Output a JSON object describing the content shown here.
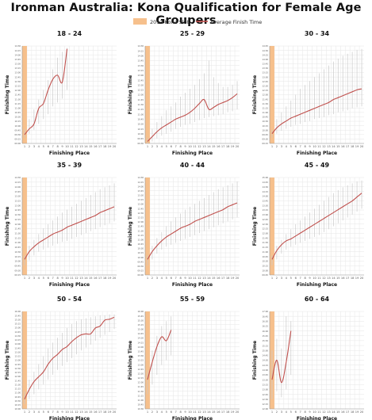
{
  "page": {
    "title": "Ironman Australia: Kona Qualification for Female Age Groupers"
  },
  "legend": {
    "slot_label": "2013 Kona Slot",
    "avg_label": "Average Finish Time"
  },
  "colors": {
    "slot": "#f6c08c",
    "line": "#c0504d",
    "whisker": "#c9c9c9",
    "grid": "#e6e6e6"
  },
  "chart_data": [
    {
      "type": "line",
      "title": "18 - 24",
      "xlabel": "Finishing Place",
      "ylabel": "Finishing Time",
      "x": [
        1,
        2,
        3,
        4,
        5,
        6,
        7,
        8,
        9,
        10
      ],
      "xticks": [
        1,
        2,
        3,
        4,
        5,
        6,
        7,
        8,
        9,
        10,
        11,
        12,
        13,
        14,
        15,
        16,
        17,
        18,
        19,
        20
      ],
      "yticks": [
        "09:00",
        "09:15",
        "09:30",
        "09:45",
        "10:00",
        "10:15",
        "10:30",
        "10:45",
        "11:00",
        "11:15",
        "11:30",
        "11:45",
        "12:00",
        "12:15",
        "12:30",
        "12:45",
        "13:00",
        "13:15",
        "13:30",
        "13:45",
        "14:00",
        "14:15",
        "14:30"
      ],
      "kona_slots": 1,
      "avg": [
        0.09,
        0.15,
        0.2,
        0.36,
        0.41,
        0.55,
        0.66,
        0.7,
        0.63,
        0.97
      ],
      "low": [
        0.06,
        0.1,
        0.14,
        0.2,
        0.25,
        0.3,
        0.38,
        0.42,
        0.46,
        0.55
      ],
      "high": [
        0.15,
        0.25,
        0.35,
        0.45,
        0.55,
        0.65,
        0.76,
        0.88,
        0.94,
        0.98
      ]
    },
    {
      "type": "line",
      "title": "25 - 29",
      "xlabel": "Finishing Place",
      "ylabel": "Finishing Time",
      "x": [
        1,
        2,
        3,
        4,
        5,
        6,
        7,
        8,
        9,
        10,
        11,
        12,
        13,
        14,
        15,
        16,
        17,
        18,
        19,
        20
      ],
      "xticks": [
        1,
        2,
        3,
        4,
        5,
        6,
        7,
        8,
        9,
        10,
        11,
        12,
        13,
        14,
        15,
        16,
        17,
        18,
        19,
        20
      ],
      "yticks": [
        "09:30",
        "09:45",
        "10:00",
        "10:15",
        "10:30",
        "10:45",
        "11:00",
        "11:15",
        "11:30",
        "11:45",
        "12:00",
        "12:15",
        "12:30",
        "12:45",
        "13:00",
        "13:15",
        "13:30",
        "13:45",
        "14:00",
        "14:15",
        "14:30"
      ],
      "kona_slots": 1,
      "avg": [
        0.02,
        0.07,
        0.12,
        0.16,
        0.19,
        0.22,
        0.25,
        0.27,
        0.29,
        0.32,
        0.36,
        0.41,
        0.45,
        0.35,
        0.37,
        0.4,
        0.42,
        0.44,
        0.47,
        0.51
      ],
      "low": [
        0.0,
        0.02,
        0.05,
        0.08,
        0.1,
        0.12,
        0.15,
        0.17,
        0.19,
        0.2,
        0.22,
        0.24,
        0.26,
        0.27,
        0.28,
        0.29,
        0.3,
        0.32,
        0.33,
        0.35
      ],
      "high": [
        0.06,
        0.15,
        0.22,
        0.28,
        0.34,
        0.38,
        0.42,
        0.48,
        0.52,
        0.56,
        0.6,
        0.66,
        0.72,
        0.85,
        0.68,
        0.62,
        0.58,
        0.58,
        0.6,
        0.64
      ]
    },
    {
      "type": "line",
      "title": "30 - 34",
      "xlabel": "Finishing Place",
      "ylabel": "Finishing Time",
      "x": [
        1,
        2,
        3,
        4,
        5,
        6,
        7,
        8,
        9,
        10,
        11,
        12,
        13,
        14,
        15,
        16,
        17,
        18,
        19,
        20
      ],
      "xticks": [
        1,
        2,
        3,
        4,
        5,
        6,
        7,
        8,
        9,
        10,
        11,
        12,
        13,
        14,
        15,
        16,
        17,
        18,
        19,
        20
      ],
      "yticks": [
        "09:15",
        "09:30",
        "09:45",
        "10:00",
        "10:15",
        "10:30",
        "10:45",
        "11:00",
        "11:15",
        "11:30",
        "11:45",
        "12:00",
        "12:15",
        "12:30",
        "12:45",
        "13:00",
        "13:15",
        "13:30",
        "13:45",
        "14:00",
        "14:15",
        "14:30",
        "14:45"
      ],
      "kona_slots": 1,
      "avg": [
        0.1,
        0.16,
        0.2,
        0.23,
        0.26,
        0.28,
        0.3,
        0.32,
        0.34,
        0.36,
        0.38,
        0.4,
        0.42,
        0.45,
        0.47,
        0.49,
        0.51,
        0.53,
        0.55,
        0.56
      ],
      "low": [
        0.06,
        0.1,
        0.13,
        0.15,
        0.17,
        0.19,
        0.2,
        0.22,
        0.23,
        0.25,
        0.26,
        0.27,
        0.29,
        0.3,
        0.32,
        0.33,
        0.34,
        0.36,
        0.37,
        0.38
      ],
      "high": [
        0.14,
        0.25,
        0.32,
        0.38,
        0.44,
        0.5,
        0.56,
        0.6,
        0.64,
        0.68,
        0.72,
        0.76,
        0.8,
        0.84,
        0.87,
        0.9,
        0.92,
        0.94,
        0.96,
        0.97
      ]
    },
    {
      "type": "line",
      "title": "35 - 39",
      "xlabel": "Finishing Place",
      "ylabel": "Finishing Time",
      "x": [
        1,
        2,
        3,
        4,
        5,
        6,
        7,
        8,
        9,
        10,
        11,
        12,
        13,
        14,
        15,
        16,
        17,
        18,
        19,
        20
      ],
      "xticks": [
        1,
        2,
        3,
        4,
        5,
        6,
        7,
        8,
        9,
        10,
        11,
        12,
        13,
        14,
        15,
        16,
        17,
        18,
        19,
        20
      ],
      "yticks": [
        "09:15",
        "09:30",
        "09:45",
        "10:00",
        "10:15",
        "10:30",
        "10:45",
        "11:00",
        "11:15",
        "11:30",
        "11:45",
        "12:00",
        "12:15",
        "12:30",
        "12:45",
        "13:00",
        "13:15",
        "13:30",
        "13:45",
        "14:00",
        "14:15",
        "14:30"
      ],
      "kona_slots": 1,
      "avg": [
        0.16,
        0.24,
        0.29,
        0.33,
        0.36,
        0.39,
        0.42,
        0.44,
        0.46,
        0.49,
        0.51,
        0.53,
        0.55,
        0.57,
        0.59,
        0.61,
        0.64,
        0.66,
        0.68,
        0.7
      ],
      "low": [
        0.1,
        0.15,
        0.2,
        0.24,
        0.26,
        0.28,
        0.3,
        0.32,
        0.34,
        0.35,
        0.37,
        0.39,
        0.41,
        0.43,
        0.45,
        0.47,
        0.49,
        0.51,
        0.53,
        0.55
      ],
      "high": [
        0.2,
        0.3,
        0.36,
        0.42,
        0.48,
        0.52,
        0.56,
        0.6,
        0.64,
        0.67,
        0.7,
        0.73,
        0.76,
        0.79,
        0.82,
        0.85,
        0.88,
        0.9,
        0.92,
        0.94
      ]
    },
    {
      "type": "line",
      "title": "40 - 44",
      "xlabel": "Finishing Place",
      "ylabel": "Finishing Time",
      "x": [
        1,
        2,
        3,
        4,
        5,
        6,
        7,
        8,
        9,
        10,
        11,
        12,
        13,
        14,
        15,
        16,
        17,
        18,
        19,
        20
      ],
      "xticks": [
        1,
        2,
        3,
        4,
        5,
        6,
        7,
        8,
        9,
        10,
        11,
        12,
        13,
        14,
        15,
        16,
        17,
        18,
        19,
        20
      ],
      "yticks": [
        "09:00",
        "09:15",
        "09:30",
        "09:45",
        "10:00",
        "10:15",
        "10:30",
        "10:45",
        "11:00",
        "11:15",
        "11:30",
        "11:45",
        "12:00",
        "12:15",
        "12:30",
        "12:45",
        "13:00",
        "13:15",
        "13:30",
        "13:45",
        "14:00",
        "14:15",
        "14:30"
      ],
      "kona_slots": 1,
      "avg": [
        0.16,
        0.24,
        0.3,
        0.35,
        0.39,
        0.42,
        0.45,
        0.48,
        0.5,
        0.52,
        0.55,
        0.57,
        0.59,
        0.61,
        0.63,
        0.65,
        0.67,
        0.7,
        0.72,
        0.74
      ],
      "low": [
        0.1,
        0.16,
        0.22,
        0.26,
        0.29,
        0.31,
        0.33,
        0.35,
        0.37,
        0.39,
        0.41,
        0.43,
        0.45,
        0.47,
        0.49,
        0.51,
        0.53,
        0.55,
        0.57,
        0.59
      ],
      "high": [
        0.2,
        0.3,
        0.38,
        0.44,
        0.5,
        0.55,
        0.59,
        0.63,
        0.67,
        0.7,
        0.73,
        0.76,
        0.79,
        0.82,
        0.85,
        0.88,
        0.9,
        0.92,
        0.94,
        0.96
      ]
    },
    {
      "type": "line",
      "title": "45 - 49",
      "xlabel": "Finishing Place",
      "ylabel": "Finishing Time",
      "x": [
        1,
        2,
        3,
        4,
        5,
        6,
        7,
        8,
        9,
        10,
        11,
        12,
        13,
        14,
        15,
        16,
        17,
        18,
        19,
        20
      ],
      "xticks": [
        1,
        2,
        3,
        4,
        5,
        6,
        7,
        8,
        9,
        10,
        11,
        12,
        13,
        14,
        15,
        16,
        17,
        18,
        19,
        20
      ],
      "yticks": [
        "09:45",
        "10:00",
        "10:15",
        "10:30",
        "10:45",
        "11:00",
        "11:15",
        "11:30",
        "11:45",
        "12:00",
        "12:15",
        "12:30",
        "12:45",
        "13:00",
        "13:15",
        "13:30",
        "13:45",
        "14:00",
        "14:15",
        "14:30",
        "14:45",
        "15:00"
      ],
      "kona_slots": 1,
      "avg": [
        0.16,
        0.25,
        0.31,
        0.35,
        0.37,
        0.4,
        0.43,
        0.46,
        0.49,
        0.52,
        0.55,
        0.58,
        0.61,
        0.64,
        0.67,
        0.7,
        0.73,
        0.76,
        0.8,
        0.84
      ],
      "low": [
        0.1,
        0.16,
        0.22,
        0.26,
        0.29,
        0.31,
        0.33,
        0.35,
        0.37,
        0.39,
        0.41,
        0.44,
        0.47,
        0.5,
        0.53,
        0.56,
        0.59,
        0.62,
        0.65,
        0.68
      ],
      "high": [
        0.2,
        0.3,
        0.36,
        0.42,
        0.47,
        0.52,
        0.56,
        0.6,
        0.64,
        0.68,
        0.72,
        0.76,
        0.8,
        0.84,
        0.87,
        0.9,
        0.92,
        0.94,
        0.96,
        0.97
      ]
    },
    {
      "type": "line",
      "title": "50 - 54",
      "xlabel": "Finishing Place",
      "ylabel": "Finishing Time",
      "x": [
        1,
        2,
        3,
        4,
        5,
        6,
        7,
        8,
        9,
        10,
        11,
        12,
        13,
        14,
        15,
        16,
        17,
        18,
        19,
        20
      ],
      "xticks": [
        1,
        2,
        3,
        4,
        5,
        6,
        7,
        8,
        9,
        10,
        11,
        12,
        13,
        14,
        15,
        16,
        17,
        18,
        19,
        20
      ],
      "yticks": [
        "10:00",
        "10:15",
        "10:30",
        "10:45",
        "11:00",
        "11:15",
        "11:30",
        "11:45",
        "12:00",
        "12:15",
        "12:30",
        "12:45",
        "13:00",
        "13:15",
        "13:30",
        "13:45",
        "14:00",
        "14:15",
        "14:30",
        "14:45",
        "15:00",
        "15:15",
        "15:30",
        "15:45",
        "16:00"
      ],
      "kona_slots": 1,
      "avg": [
        0.1,
        0.2,
        0.28,
        0.33,
        0.38,
        0.46,
        0.52,
        0.56,
        0.61,
        0.64,
        0.69,
        0.73,
        0.76,
        0.77,
        0.77,
        0.83,
        0.85,
        0.91,
        0.92,
        0.94
      ],
      "low": [
        0.05,
        0.1,
        0.15,
        0.2,
        0.25,
        0.3,
        0.35,
        0.4,
        0.44,
        0.48,
        0.52,
        0.56,
        0.6,
        0.63,
        0.66,
        0.7,
        0.73,
        0.76,
        0.79,
        0.82
      ],
      "high": [
        0.18,
        0.3,
        0.38,
        0.46,
        0.54,
        0.62,
        0.68,
        0.73,
        0.78,
        0.83,
        0.87,
        0.9,
        0.92,
        0.93,
        0.94,
        0.95,
        0.96,
        0.96,
        0.97,
        0.97
      ]
    },
    {
      "type": "line",
      "title": "55 - 59",
      "xlabel": "Finishing Place",
      "ylabel": "Finishing Time",
      "x": [
        1,
        2,
        3,
        4,
        5,
        6
      ],
      "xticks": [
        1,
        2,
        3,
        4,
        5,
        6,
        7,
        8,
        9,
        10,
        11,
        12,
        13,
        14,
        15,
        16,
        17,
        18,
        19,
        20
      ],
      "yticks": [
        "10:30",
        "10:45",
        "11:00",
        "11:15",
        "11:30",
        "11:45",
        "12:00",
        "12:15",
        "12:30",
        "12:45",
        "13:00",
        "13:15",
        "13:30",
        "13:45",
        "14:00",
        "14:15",
        "14:30",
        "14:45",
        "15:00",
        "15:15",
        "15:30",
        "15:45",
        "16:00"
      ],
      "kona_slots": 1,
      "avg": [
        0.3,
        0.48,
        0.64,
        0.74,
        0.7,
        0.81
      ],
      "low": [
        0.15,
        0.25,
        0.35,
        0.45,
        0.5,
        0.55
      ],
      "high": [
        0.4,
        0.6,
        0.75,
        0.85,
        0.9,
        0.95
      ]
    },
    {
      "type": "line",
      "title": "60 - 64",
      "xlabel": "Finishing Place",
      "ylabel": "Finishing Time",
      "x": [
        1,
        2,
        3,
        4,
        5
      ],
      "xticks": [
        1,
        2,
        3,
        4,
        5,
        6,
        7,
        8,
        9,
        10,
        11,
        12,
        13,
        14,
        15,
        16,
        17,
        18,
        19,
        20
      ],
      "yticks": [
        "12:00",
        "12:15",
        "12:30",
        "12:45",
        "13:00",
        "13:15",
        "13:30",
        "13:45",
        "14:00",
        "14:15",
        "14:30",
        "14:45",
        "15:00",
        "15:15",
        "15:30",
        "15:45",
        "16:00",
        "16:15",
        "16:30",
        "16:45",
        "17:00"
      ],
      "kona_slots": 1,
      "avg": [
        0.3,
        0.5,
        0.27,
        0.48,
        0.8
      ],
      "low": [
        0.1,
        0.18,
        0.12,
        0.2,
        0.35
      ],
      "high": [
        0.6,
        0.72,
        0.62,
        0.95,
        0.9
      ]
    }
  ]
}
